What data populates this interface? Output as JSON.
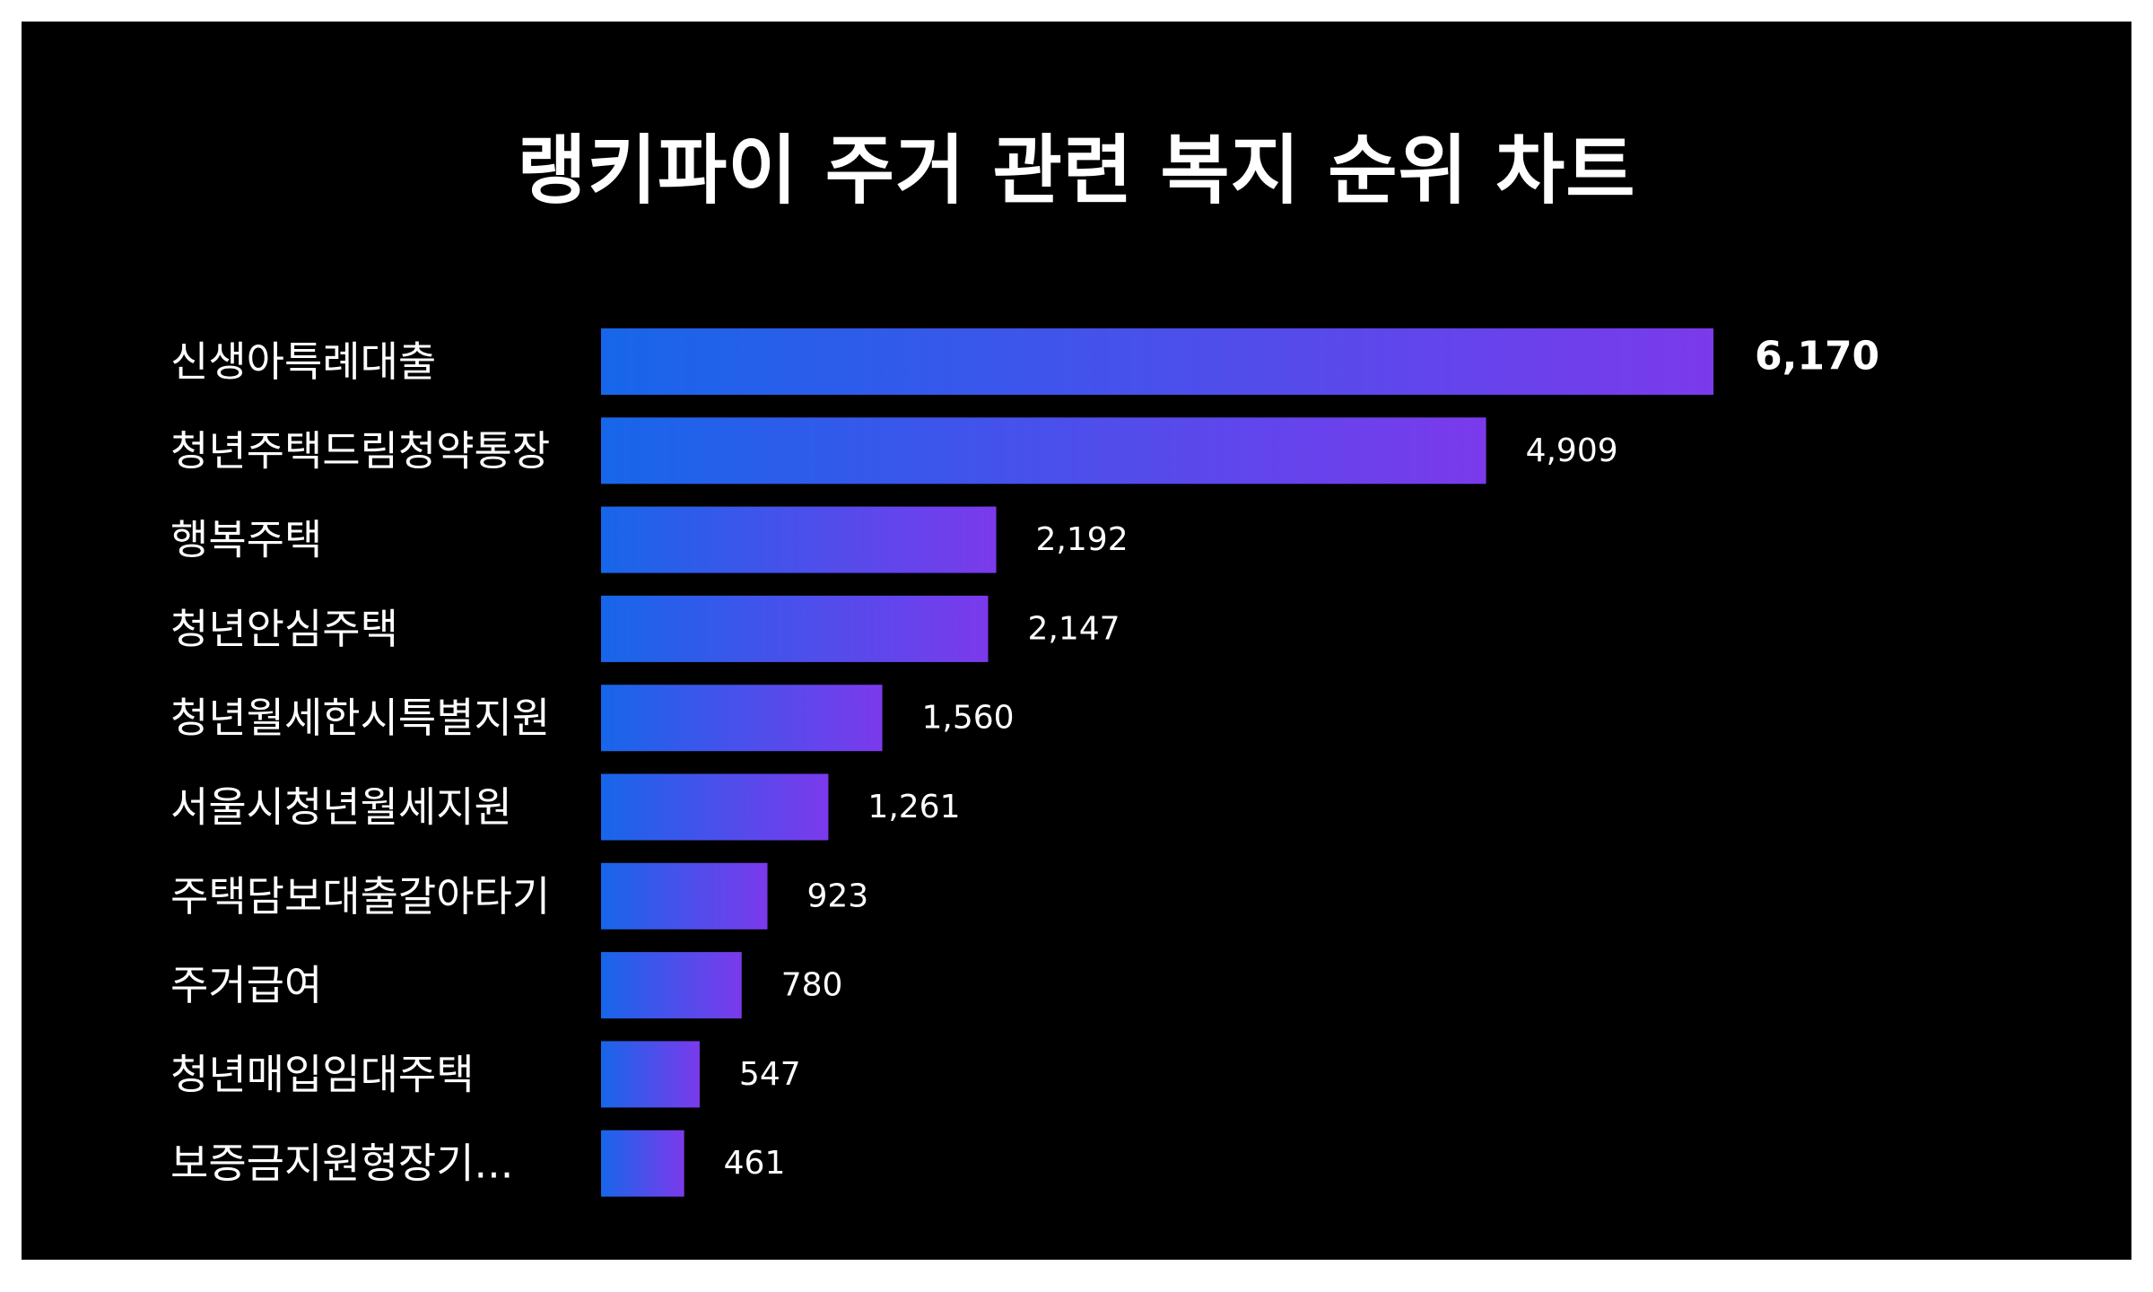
{
  "chart_data": {
    "type": "bar",
    "orientation": "horizontal",
    "title": "랭키파이 주거 관련 복지 순위 차트",
    "categories": [
      "신생아특례대출",
      "청년주택드림청약통장",
      "행복주택",
      "청년안심주택",
      "청년월세한시특별지원",
      "서울시청년월세지원",
      "주택담보대출갈아타기",
      "주거급여",
      "청년매입임대주택",
      "보증금지원형장기..."
    ],
    "values": [
      6170,
      4909,
      2192,
      2147,
      1560,
      1261,
      923,
      780,
      547,
      461
    ],
    "value_labels": [
      "6,170",
      "4,909",
      "2,192",
      "2,147",
      "1,560",
      "1,261",
      "923",
      "780",
      "547",
      "461"
    ],
    "xlim": [
      0,
      6170
    ],
    "grid": false,
    "legend": "none",
    "colors": {
      "background": "#000000",
      "bar_gradient_start": "#1766EA",
      "bar_gradient_end": "#7B3AEC",
      "text": "#FFFFFF"
    }
  }
}
